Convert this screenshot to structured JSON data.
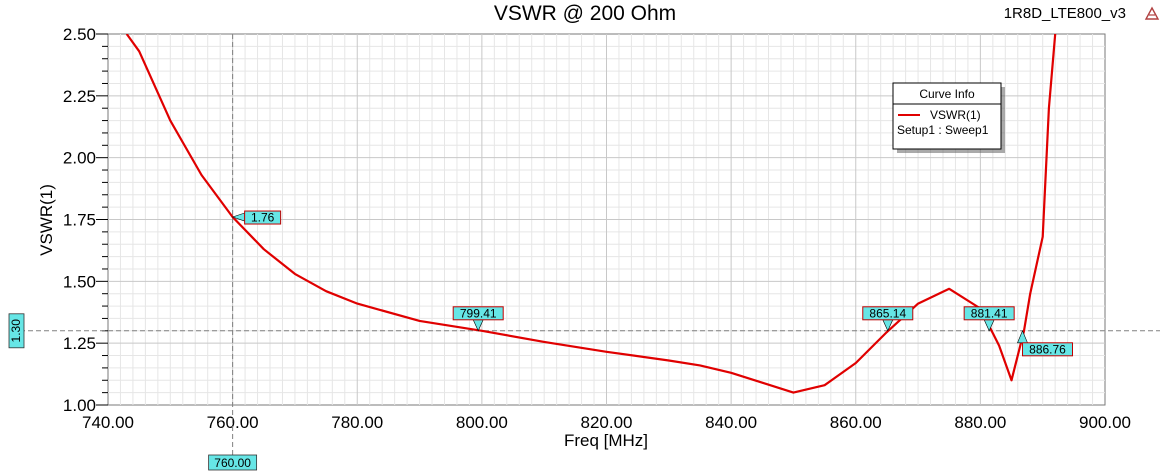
{
  "window": {
    "project_name": "1R8D_LTE800_v3",
    "logo_icon": "ansys-logo-icon"
  },
  "chart_data": {
    "type": "line",
    "title": "VSWR @ 200 Ohm",
    "xlabel": "Freq [MHz]",
    "ylabel": "VSWR(1)",
    "xlim": [
      740,
      900
    ],
    "ylim": [
      1.0,
      2.5
    ],
    "grid": true,
    "x_ticks": [
      "740.00",
      "760.00",
      "780.00",
      "800.00",
      "820.00",
      "840.00",
      "860.00",
      "880.00",
      "900.00"
    ],
    "y_ticks": [
      "1.00",
      "1.25",
      "1.50",
      "1.75",
      "2.00",
      "2.25",
      "2.50"
    ],
    "series": [
      {
        "name": "VSWR(1)",
        "color": "#e00000",
        "x": [
          743,
          745,
          750,
          755,
          760,
          765,
          770,
          775,
          780,
          790,
          800,
          810,
          820,
          830,
          835,
          840,
          845,
          850,
          855,
          860,
          865,
          870,
          875,
          880,
          883,
          885,
          887,
          888,
          890,
          891,
          892
        ],
        "y": [
          2.5,
          2.43,
          2.15,
          1.93,
          1.76,
          1.63,
          1.53,
          1.46,
          1.41,
          1.34,
          1.3,
          1.255,
          1.215,
          1.18,
          1.16,
          1.13,
          1.09,
          1.05,
          1.08,
          1.17,
          1.295,
          1.41,
          1.47,
          1.39,
          1.24,
          1.1,
          1.3,
          1.45,
          1.68,
          2.2,
          2.5
        ]
      }
    ],
    "legend": {
      "title": "Curve Info",
      "entry": "VSWR(1)",
      "setup": "Setup1 : Sweep1",
      "position": "top-right"
    },
    "markers": [
      {
        "x": 760,
        "y": 1.76,
        "label": "1.76",
        "anchor": "right"
      },
      {
        "x": 799.41,
        "y": 1.3,
        "label": "799.41",
        "anchor": "above"
      },
      {
        "x": 865.14,
        "y": 1.3,
        "label": "865.14",
        "anchor": "above"
      },
      {
        "x": 881.41,
        "y": 1.3,
        "label": "881.41",
        "anchor": "above"
      },
      {
        "x": 886.76,
        "y": 1.3,
        "label": "886.76",
        "anchor": "below"
      }
    ],
    "cursor": {
      "x": 760,
      "y": 1.3,
      "x_label": "760.00",
      "y_label": "1.30"
    }
  }
}
